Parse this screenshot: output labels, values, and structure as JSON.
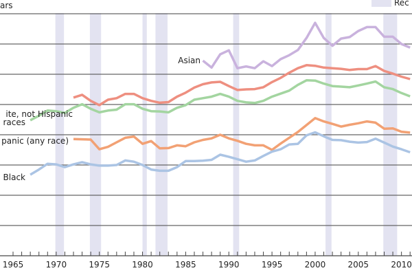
{
  "chart_data": {
    "type": "line",
    "title": "",
    "ylabel_fragment": "ars",
    "legend": {
      "recession_label": "Rec",
      "placement": "top-right"
    },
    "xlim": [
      1965,
      2011
    ],
    "ylim": [
      0,
      80
    ],
    "y_gridlines": [
      0,
      10,
      20,
      30,
      40,
      50,
      60,
      70,
      80
    ],
    "grid": true,
    "x_tick_labels": [
      "1965",
      "1970",
      "1975",
      "1980",
      "1985",
      "1990",
      "1995",
      "2000",
      "2005",
      "2010"
    ],
    "recessions": [
      [
        1969.9,
        1970.9
      ],
      [
        1973.9,
        1975.2
      ],
      [
        1980.0,
        1980.5
      ],
      [
        1981.5,
        1982.9
      ],
      [
        1990.5,
        1991.2
      ],
      [
        2001.2,
        2001.9
      ],
      [
        2007.9,
        2009.5
      ]
    ],
    "series": [
      {
        "name": "Asian",
        "label": "Asian",
        "color": "#c9b2dd",
        "start": 1987,
        "values": [
          64.5,
          62.2,
          66.6,
          67.9,
          62.0,
          62.6,
          62.0,
          64.3,
          62.7,
          65.0,
          66.3,
          68.0,
          72.0,
          77.0,
          72.0,
          69.4,
          71.8,
          72.3,
          74.3,
          75.6,
          75.6,
          72.4,
          72.4,
          70.0,
          68.8
        ]
      },
      {
        "name": "White, not Hispanic",
        "label": "ite, not Hispanic",
        "color": "#ee8f80",
        "start": 1972,
        "values": [
          52.3,
          53.2,
          51.2,
          49.8,
          51.6,
          52.1,
          53.5,
          53.5,
          52.1,
          51.2,
          50.6,
          50.8,
          52.6,
          53.9,
          55.6,
          56.7,
          57.3,
          57.5,
          56.1,
          54.8,
          55.0,
          55.1,
          55.7,
          57.4,
          58.8,
          60.5,
          62.0,
          63.0,
          62.8,
          62.2,
          62.0,
          61.8,
          61.4,
          61.7,
          61.7,
          62.7,
          61.1,
          60.2,
          59.2,
          58.4
        ]
      },
      {
        "name": "All races",
        "label": "races",
        "color": "#a3d5a0",
        "start": 1967,
        "values": [
          44.8,
          46.3,
          48.0,
          47.8,
          47.2,
          48.9,
          50.1,
          48.6,
          47.4,
          48.0,
          48.3,
          50.1,
          50.1,
          48.6,
          47.8,
          47.7,
          47.4,
          48.9,
          49.8,
          51.6,
          52.1,
          52.6,
          53.5,
          52.6,
          51.2,
          50.7,
          50.5,
          51.2,
          52.6,
          53.6,
          54.6,
          56.5,
          58.0,
          57.9,
          56.9,
          56.1,
          55.9,
          55.7,
          56.3,
          56.9,
          57.6,
          55.7,
          55.1,
          53.8,
          52.7
        ]
      },
      {
        "name": "Hispanic (any race)",
        "label": "panic (any race)",
        "color": "#f2a174",
        "start": 1972,
        "values": [
          38.6,
          38.5,
          38.4,
          35.2,
          36.0,
          37.5,
          39.0,
          39.4,
          37.0,
          37.9,
          35.5,
          35.6,
          36.5,
          36.2,
          37.5,
          38.3,
          38.8,
          40.0,
          38.8,
          38.0,
          37.0,
          36.5,
          36.5,
          35.0,
          37.1,
          39.0,
          40.9,
          43.2,
          45.5,
          44.4,
          43.6,
          42.7,
          43.3,
          43.8,
          44.4,
          44.0,
          42.0,
          42.1,
          41.0,
          40.7
        ]
      },
      {
        "name": "Black",
        "label": "Black",
        "color": "#abc4e4",
        "start": 1967,
        "values": [
          26.8,
          28.5,
          30.4,
          30.2,
          29.3,
          30.2,
          30.9,
          30.2,
          29.8,
          29.8,
          30.0,
          31.5,
          31.1,
          30.0,
          28.5,
          28.1,
          28.1,
          29.3,
          31.3,
          31.3,
          31.4,
          31.7,
          33.4,
          32.7,
          31.9,
          31.1,
          31.5,
          33.0,
          34.4,
          35.2,
          36.8,
          37.0,
          39.8,
          40.8,
          39.5,
          38.3,
          38.2,
          37.7,
          37.4,
          37.6,
          38.7,
          37.4,
          36.1,
          35.2,
          34.2
        ]
      }
    ]
  },
  "colors": {
    "recession": "#e3e3f1",
    "grid": "#666666"
  }
}
